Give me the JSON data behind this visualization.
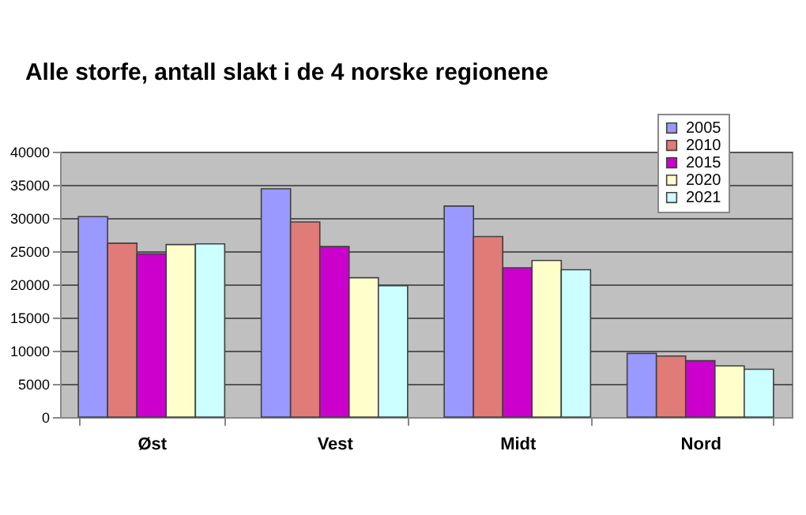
{
  "chart_data": {
    "type": "bar",
    "title": "Alle storfe, antall slakt i de 4 norske regionene",
    "categories": [
      "Øst",
      "Vest",
      "Midt",
      "Nord"
    ],
    "series": [
      {
        "name": "2005",
        "color": "#9999ff",
        "values": [
          30200,
          34400,
          31800,
          9600
        ]
      },
      {
        "name": "2010",
        "color": "#e07b78",
        "values": [
          26200,
          29400,
          27200,
          9200
        ]
      },
      {
        "name": "2015",
        "color": "#cc00cc",
        "values": [
          24600,
          25700,
          22500,
          8500
        ]
      },
      {
        "name": "2020",
        "color": "#ffffcc",
        "values": [
          26000,
          21000,
          23600,
          7700
        ]
      },
      {
        "name": "2021",
        "color": "#ccffff",
        "values": [
          26100,
          19800,
          22200,
          7200
        ]
      }
    ],
    "ylim": [
      0,
      40000
    ],
    "yticks": [
      0,
      5000,
      10000,
      15000,
      20000,
      25000,
      30000,
      35000,
      40000
    ],
    "grid": "y",
    "legend": "top right"
  }
}
